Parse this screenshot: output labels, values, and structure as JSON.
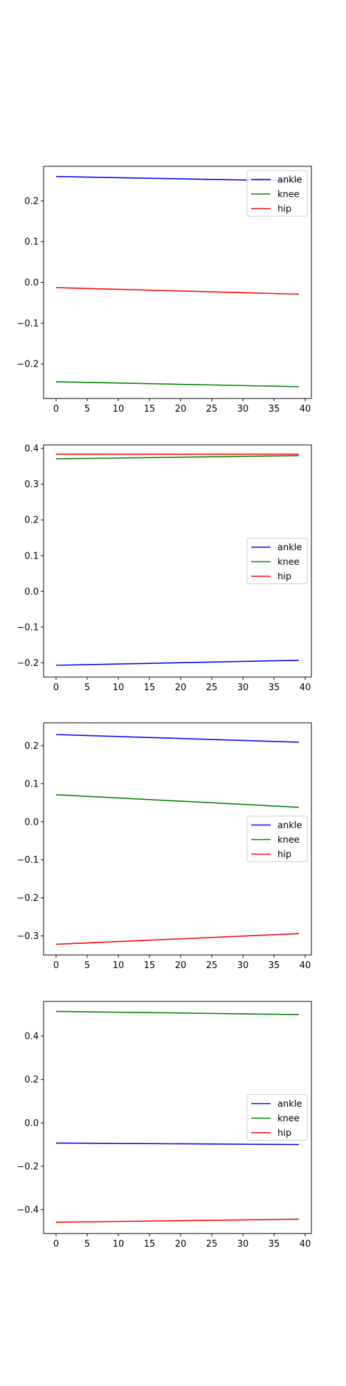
{
  "chart_data": [
    {
      "type": "line",
      "title": "",
      "xlabel": "",
      "ylabel": "",
      "xlim": [
        -2,
        41
      ],
      "ylim": [
        -0.285,
        0.285
      ],
      "xticks": [
        0,
        5,
        10,
        15,
        20,
        25,
        30,
        35,
        40
      ],
      "yticks": [
        -0.2,
        -0.1,
        0.0,
        0.1,
        0.2
      ],
      "ytick_labels": [
        "−0.2",
        "−0.1",
        "0.0",
        "0.1",
        "0.2"
      ],
      "legend_position": "top-right",
      "series": [
        {
          "name": "ankle",
          "color": "#0000ff",
          "x": [
            0,
            39
          ],
          "y": [
            0.26,
            0.249
          ]
        },
        {
          "name": "knee",
          "color": "#008000",
          "x": [
            0,
            39
          ],
          "y": [
            -0.244,
            -0.256
          ]
        },
        {
          "name": "hip",
          "color": "#ff0000",
          "x": [
            0,
            39
          ],
          "y": [
            -0.013,
            -0.029
          ]
        }
      ]
    },
    {
      "type": "line",
      "title": "",
      "xlabel": "",
      "ylabel": "",
      "xlim": [
        -2,
        41
      ],
      "ylim": [
        -0.24,
        0.41
      ],
      "xticks": [
        0,
        5,
        10,
        15,
        20,
        25,
        30,
        35,
        40
      ],
      "yticks": [
        -0.2,
        -0.1,
        0.0,
        0.1,
        0.2,
        0.3,
        0.4
      ],
      "ytick_labels": [
        "−0.2",
        "−0.1",
        "0.0",
        "0.1",
        "0.2",
        "0.3",
        "0.4"
      ],
      "legend_position": "center-right",
      "series": [
        {
          "name": "ankle",
          "color": "#0000ff",
          "x": [
            0,
            39
          ],
          "y": [
            -0.207,
            -0.193
          ]
        },
        {
          "name": "knee",
          "color": "#008000",
          "x": [
            0,
            39
          ],
          "y": [
            0.371,
            0.38
          ]
        },
        {
          "name": "hip",
          "color": "#ff0000",
          "x": [
            0,
            39
          ],
          "y": [
            0.384,
            0.384
          ]
        }
      ]
    },
    {
      "type": "line",
      "title": "",
      "xlabel": "",
      "ylabel": "",
      "xlim": [
        -2,
        41
      ],
      "ylim": [
        -0.35,
        0.26
      ],
      "xticks": [
        0,
        5,
        10,
        15,
        20,
        25,
        30,
        35,
        40
      ],
      "yticks": [
        -0.3,
        -0.2,
        -0.1,
        0.0,
        0.1,
        0.2
      ],
      "ytick_labels": [
        "−0.3",
        "−0.2",
        "−0.1",
        "0.0",
        "0.1",
        "0.2"
      ],
      "legend_position": "center-right",
      "series": [
        {
          "name": "ankle",
          "color": "#0000ff",
          "x": [
            0,
            39
          ],
          "y": [
            0.229,
            0.209
          ]
        },
        {
          "name": "knee",
          "color": "#008000",
          "x": [
            0,
            39
          ],
          "y": [
            0.071,
            0.038
          ]
        },
        {
          "name": "hip",
          "color": "#ff0000",
          "x": [
            0,
            39
          ],
          "y": [
            -0.322,
            -0.294
          ]
        }
      ]
    },
    {
      "type": "line",
      "title": "",
      "xlabel": "",
      "ylabel": "",
      "xlim": [
        -2,
        41
      ],
      "ylim": [
        -0.51,
        0.56
      ],
      "xticks": [
        0,
        5,
        10,
        15,
        20,
        25,
        30,
        35,
        40
      ],
      "yticks": [
        -0.4,
        -0.2,
        0.0,
        0.2,
        0.4
      ],
      "ytick_labels": [
        "−0.4",
        "−0.2",
        "0.0",
        "0.2",
        "0.4"
      ],
      "legend_position": "center-right",
      "series": [
        {
          "name": "ankle",
          "color": "#0000ff",
          "x": [
            0,
            39
          ],
          "y": [
            -0.093,
            -0.1
          ]
        },
        {
          "name": "knee",
          "color": "#008000",
          "x": [
            0,
            39
          ],
          "y": [
            0.514,
            0.499
          ]
        },
        {
          "name": "hip",
          "color": "#ff0000",
          "x": [
            0,
            39
          ],
          "y": [
            -0.458,
            -0.444
          ]
        }
      ]
    }
  ]
}
